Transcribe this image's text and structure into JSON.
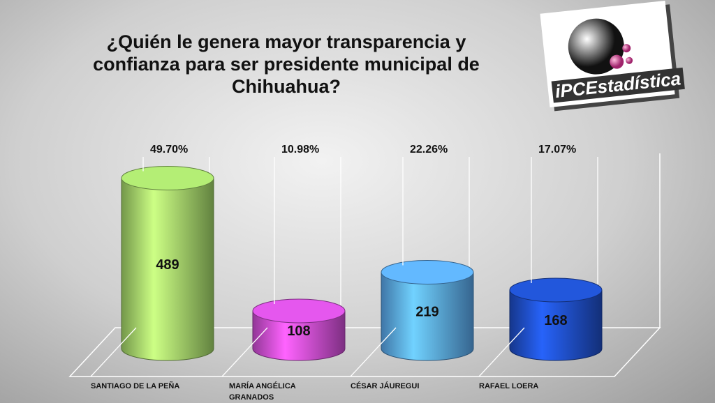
{
  "chart_data": {
    "type": "cylinder",
    "title": "¿Quién le genera mayor transparencia y confianza para ser presidente municipal de Chihuahua?",
    "logo": "iPCEstadística",
    "categories": [
      "SANTIAGO DE LA PEÑA",
      "MARÍA ANGÉLICA GRANADOS",
      "CÉSAR JÁUREGUI",
      "RAFAEL LOERA"
    ],
    "values": [
      489,
      108,
      219,
      168
    ],
    "percent_labels": [
      "49.70%",
      "10.98%",
      "22.26%",
      "17.07%"
    ],
    "colors": [
      "#a4d86a",
      "#d04fd8",
      "#5aa8ee",
      "#1f4fc8"
    ]
  }
}
